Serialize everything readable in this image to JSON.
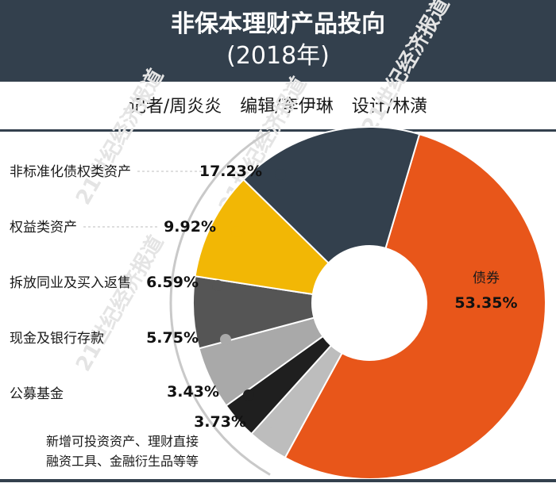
{
  "header": {
    "title": "非保本理财产品投向",
    "subtitle": "(2018年)"
  },
  "credits": {
    "reporter": "记者/周炎炎",
    "editor": "编辑/李伊琳",
    "design": "设计/林潢"
  },
  "watermark": "21世纪经济报道",
  "colors": {
    "header_bg": "#33404d",
    "accent_orange": "#e8561a"
  },
  "chart_data": {
    "type": "pie",
    "variant": "donut",
    "slices": [
      {
        "label": "债券",
        "value": 53.35,
        "display": "53.35%",
        "color": "#e8561a"
      },
      {
        "label": "新增可投资资产、理财直接融资工具、金融衍生品等等",
        "value": 3.73,
        "display": "3.73%",
        "color": "#bdbdbd"
      },
      {
        "label": "公募基金",
        "value": 3.43,
        "display": "3.43%",
        "color": "#1f1f1f"
      },
      {
        "label": "现金及银行存款",
        "value": 5.75,
        "display": "5.75%",
        "color": "#a9a9a9"
      },
      {
        "label": "拆放同业及买入返售",
        "value": 6.59,
        "display": "6.59%",
        "color": "#555555"
      },
      {
        "label": "权益类资产",
        "value": 9.92,
        "display": "9.92%",
        "color": "#f2b705"
      },
      {
        "label": "非标准化债权类资产",
        "value": 17.23,
        "display": "17.23%",
        "color": "#33404d"
      }
    ],
    "note_lines": [
      "新增可投资资产、理财直接",
      "融资工具、金融衍生品等等"
    ]
  }
}
